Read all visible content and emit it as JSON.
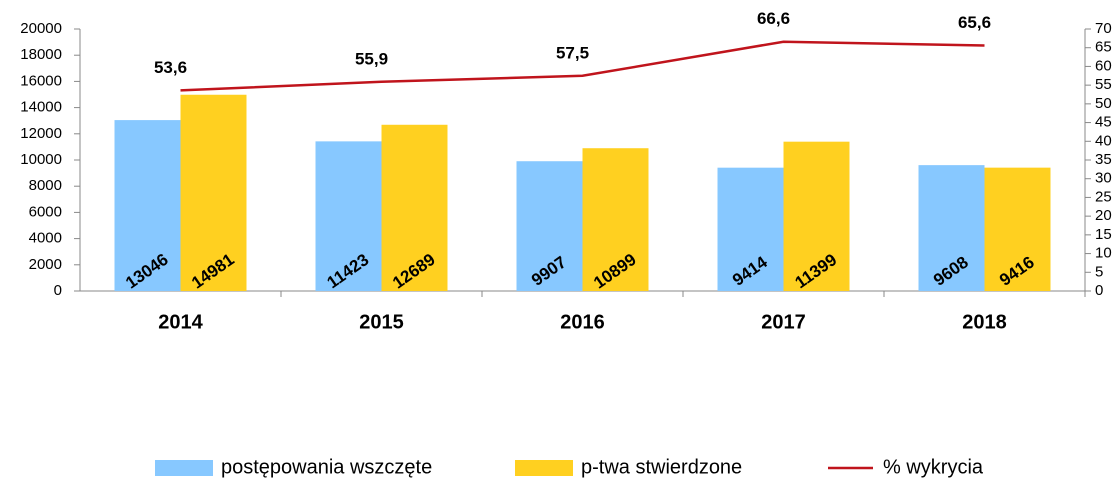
{
  "chart_data": {
    "type": "bar",
    "categories": [
      "2014",
      "2015",
      "2016",
      "2017",
      "2018"
    ],
    "series": [
      {
        "name": "postępowania wszczęte",
        "color": "#87c8ff",
        "values": [
          13046,
          11423,
          9907,
          9414,
          9608
        ]
      },
      {
        "name": "p-twa stwierdzone",
        "color": "#ffd020",
        "values": [
          14981,
          12689,
          10899,
          11399,
          9416
        ]
      },
      {
        "name": "% wykrycia",
        "color": "#c0141c",
        "type": "line",
        "axis": "y2",
        "values": [
          53.6,
          55.9,
          57.5,
          66.6,
          65.6
        ],
        "value_labels": [
          "53,6",
          "55,9",
          "57,5",
          "66,6",
          "65,6"
        ]
      }
    ],
    "ylim": [
      0,
      20000
    ],
    "yticks": [
      0,
      2000,
      4000,
      6000,
      8000,
      10000,
      12000,
      14000,
      16000,
      18000,
      20000
    ],
    "y2lim": [
      0,
      70
    ],
    "y2ticks": [
      0,
      5,
      10,
      15,
      20,
      25,
      30,
      35,
      40,
      45,
      50,
      55,
      60,
      65,
      70
    ],
    "legend": "bottom"
  }
}
